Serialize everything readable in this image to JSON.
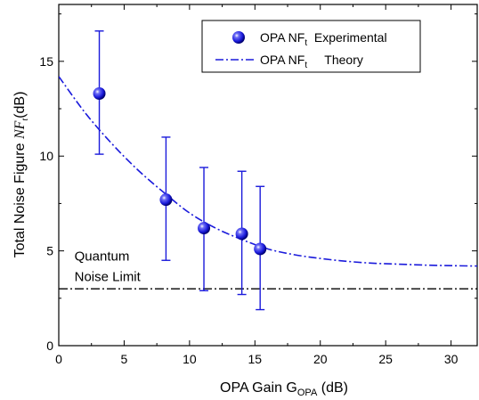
{
  "chart_data": {
    "type": "scatter",
    "xlim": [
      0,
      32
    ],
    "ylim": [
      0,
      18
    ],
    "xticks": [
      0,
      5,
      10,
      15,
      20,
      25,
      30
    ],
    "yticks": [
      0,
      5,
      10,
      15
    ],
    "xlabel": "OPA Gain G",
    "xlabel_sub": "OPA",
    "xlabel_suffix": " (dB)",
    "ylabel_prefix": "Total Noise Figure ",
    "ylabel_italic": "NF",
    "ylabel_sub": "t",
    "ylabel_suffix": "(dB)",
    "colors": {
      "series": "#1a1adb",
      "limit": "#000000"
    },
    "legend": {
      "position": "top-right",
      "items": [
        {
          "main": "OPA NF",
          "sub": "t",
          "suffix": "  Experimental",
          "marker": "sphere"
        },
        {
          "main": "OPA NF",
          "sub": "t",
          "suffix": "     Theory",
          "marker": "dash-dot-line"
        }
      ]
    },
    "series": [
      {
        "name": "OPA NFt Experimental",
        "kind": "points-with-errorbars",
        "x": [
          3.1,
          8.2,
          11.1,
          14.0,
          15.4
        ],
        "y": [
          13.3,
          7.7,
          6.2,
          5.9,
          5.1
        ],
        "y_low": [
          10.1,
          4.5,
          2.9,
          2.7,
          1.9
        ],
        "y_high": [
          16.6,
          11.0,
          9.4,
          9.2,
          8.4
        ]
      },
      {
        "name": "OPA NFt Theory",
        "kind": "dash-dot-curve",
        "x": [
          0,
          2,
          4,
          6,
          8,
          10,
          12,
          14,
          16,
          18,
          20,
          22,
          24,
          26,
          28,
          30,
          32
        ],
        "y": [
          14.2,
          12.3,
          10.7,
          9.3,
          8.1,
          7.0,
          6.2,
          5.6,
          5.1,
          4.8,
          4.6,
          4.45,
          4.35,
          4.3,
          4.25,
          4.22,
          4.2
        ]
      },
      {
        "name": "Quantum Noise Limit",
        "kind": "horizontal-line",
        "y": 3.0
      }
    ],
    "annotations": [
      {
        "text": "Quantum",
        "x": 1.2,
        "y": 4.5
      },
      {
        "text": "Noise Limit",
        "x": 1.2,
        "y": 3.4
      }
    ]
  }
}
